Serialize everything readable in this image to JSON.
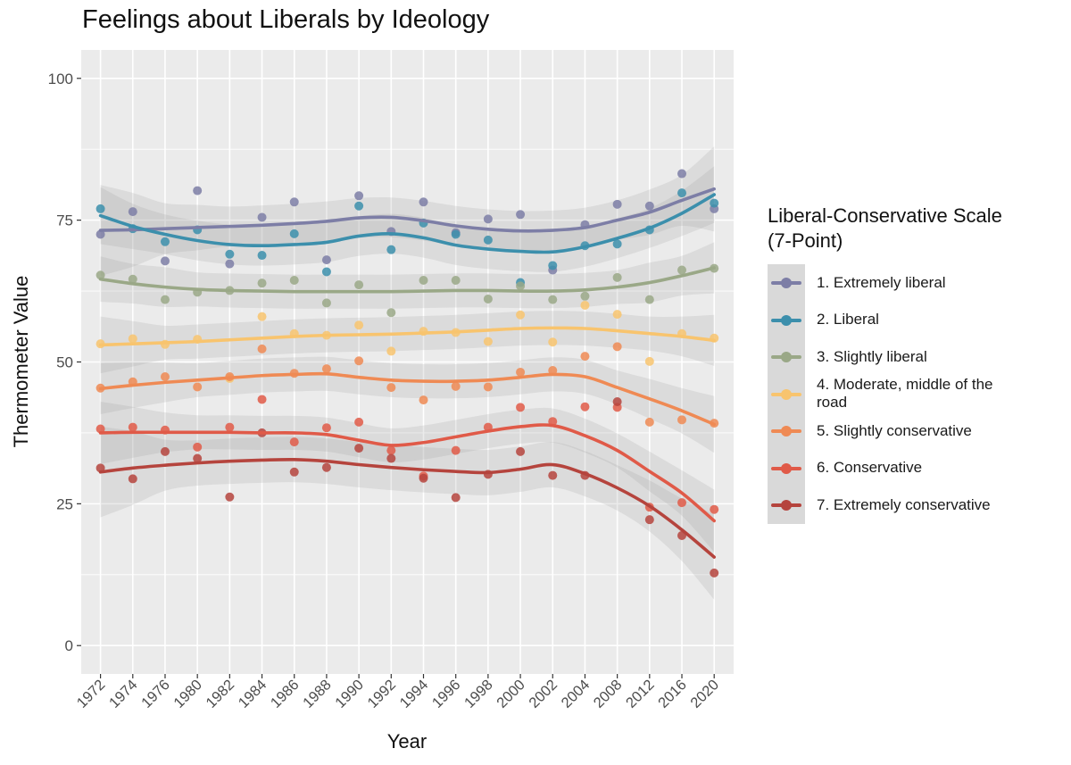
{
  "chart_data": {
    "type": "scatter",
    "title": "Feelings about Liberals by Ideology",
    "xlabel": "Year",
    "ylabel": "Thermometer Value",
    "legend_title": "Liberal-Conservative Scale (7-Point)",
    "legend_title_lines": [
      "Liberal-Conservative Scale",
      "(7-Point)"
    ],
    "legend_position": "right",
    "grid": true,
    "background": "#ebebeb",
    "ylim": [
      -5,
      105
    ],
    "yticks": [
      0,
      25,
      50,
      75,
      100
    ],
    "categories": [
      "1972",
      "1974",
      "1976",
      "1980",
      "1982",
      "1984",
      "1986",
      "1988",
      "1990",
      "1992",
      "1994",
      "1996",
      "1998",
      "2000",
      "2002",
      "2004",
      "2008",
      "2012",
      "2016",
      "2020"
    ],
    "smoothing": "loess with 95% confidence band",
    "series": [
      {
        "name": "1. Extremely liberal",
        "color": "#7d7ea6",
        "values": [
          72.5,
          76.5,
          67.8,
          80.2,
          67.3,
          75.5,
          78.2,
          68.0,
          79.3,
          73.0,
          78.2,
          72.8,
          75.2,
          76.0,
          66.2,
          74.2,
          77.8,
          77.5,
          83.2,
          77.0
        ],
        "fit": [
          73.2,
          73.3,
          73.5,
          73.7,
          73.9,
          74.1,
          74.4,
          74.8,
          75.4,
          75.5,
          74.9,
          74.0,
          73.4,
          73.1,
          73.2,
          73.7,
          75.0,
          76.4,
          78.5,
          80.5
        ],
        "band": [
          8.0,
          6.5,
          4.5,
          4.0,
          3.5,
          3.5,
          3.5,
          3.5,
          3.5,
          3.5,
          3.5,
          3.5,
          3.5,
          3.5,
          3.5,
          3.5,
          3.5,
          4.0,
          4.5,
          7.5
        ]
      },
      {
        "name": "2. Liberal",
        "color": "#3c8fac",
        "values": [
          77.0,
          73.5,
          71.2,
          73.3,
          69.0,
          68.8,
          72.6,
          65.9,
          77.5,
          69.8,
          74.5,
          72.5,
          71.5,
          64.0,
          67.0,
          70.5,
          70.8,
          73.3,
          79.8,
          78.0
        ],
        "fit": [
          75.8,
          73.9,
          72.5,
          71.4,
          70.7,
          70.5,
          70.7,
          71.1,
          72.2,
          72.6,
          71.9,
          70.6,
          69.9,
          69.5,
          69.4,
          70.3,
          71.8,
          73.6,
          76.2,
          79.5
        ],
        "band": [
          5.0,
          4.0,
          3.5,
          3.5,
          3.5,
          3.5,
          3.5,
          3.5,
          3.5,
          3.5,
          3.5,
          3.5,
          3.5,
          3.5,
          3.5,
          3.5,
          3.5,
          3.5,
          4.0,
          5.0
        ]
      },
      {
        "name": "3. Slightly liberal",
        "color": "#9aa887",
        "values": [
          65.3,
          64.6,
          61.0,
          62.3,
          62.6,
          63.9,
          64.4,
          60.4,
          63.6,
          58.7,
          64.4,
          64.4,
          61.1,
          63.4,
          61.0,
          61.6,
          64.9,
          61.0,
          66.2,
          66.5
        ],
        "fit": [
          64.6,
          63.8,
          63.2,
          62.8,
          62.6,
          62.5,
          62.4,
          62.4,
          62.4,
          62.4,
          62.5,
          62.6,
          62.6,
          62.5,
          62.5,
          62.7,
          63.2,
          64.0,
          65.2,
          66.6
        ],
        "band": [
          4.0,
          3.5,
          3.5,
          3.0,
          3.0,
          3.0,
          3.0,
          3.0,
          3.0,
          3.0,
          3.0,
          3.0,
          3.0,
          3.0,
          3.0,
          3.0,
          3.0,
          3.5,
          3.5,
          4.5
        ]
      },
      {
        "name": "4. Moderate, middle of the road",
        "color": "#f8c46e",
        "label_lines": [
          "4. Moderate, middle of the",
          "road"
        ],
        "values": [
          53.2,
          54.1,
          53.1,
          54.0,
          47.1,
          58.0,
          55.0,
          54.7,
          56.5,
          51.9,
          55.4,
          55.2,
          53.6,
          58.3,
          53.5,
          60.0,
          58.4,
          50.1,
          55.0,
          54.2
        ],
        "fit": [
          53.0,
          53.2,
          53.4,
          53.6,
          53.9,
          54.2,
          54.5,
          54.7,
          54.8,
          54.9,
          55.1,
          55.3,
          55.6,
          55.9,
          56.0,
          55.9,
          55.5,
          55.0,
          54.5,
          53.8
        ],
        "band": [
          5.0,
          4.0,
          3.0,
          3.0,
          3.0,
          3.0,
          3.0,
          3.0,
          3.0,
          3.0,
          3.0,
          3.0,
          3.0,
          3.0,
          3.0,
          3.0,
          3.0,
          3.0,
          3.5,
          4.5
        ]
      },
      {
        "name": "5. Slightly conservative",
        "color": "#ef8a54",
        "values": [
          45.4,
          46.5,
          47.4,
          45.6,
          47.4,
          52.3,
          48.0,
          48.8,
          50.2,
          45.5,
          43.3,
          45.7,
          45.6,
          48.2,
          48.5,
          51.0,
          52.7,
          39.4,
          39.8,
          39.2
        ],
        "fit": [
          45.3,
          45.9,
          46.4,
          46.8,
          47.2,
          47.6,
          47.8,
          47.9,
          47.3,
          46.8,
          46.6,
          46.6,
          46.8,
          47.3,
          47.8,
          47.4,
          45.5,
          43.5,
          41.4,
          39.0
        ],
        "band": [
          4.5,
          4.0,
          3.5,
          3.0,
          3.0,
          3.0,
          3.0,
          3.0,
          3.0,
          3.0,
          3.0,
          3.0,
          3.0,
          3.0,
          3.0,
          3.0,
          3.0,
          3.5,
          4.0,
          5.0
        ]
      },
      {
        "name": "6. Conservative",
        "color": "#e05a48",
        "values": [
          38.2,
          38.5,
          38.0,
          35.0,
          38.5,
          43.4,
          35.9,
          38.4,
          39.4,
          34.4,
          29.9,
          34.4,
          38.5,
          42.0,
          39.5,
          42.1,
          42.0,
          24.4,
          25.2,
          24.0
        ],
        "fit": [
          37.5,
          37.6,
          37.6,
          37.6,
          37.6,
          37.5,
          37.5,
          37.2,
          36.2,
          35.3,
          35.8,
          36.8,
          37.8,
          38.6,
          38.8,
          37.0,
          34.4,
          30.7,
          26.9,
          22.0
        ],
        "band": [
          5.5,
          4.5,
          3.5,
          3.0,
          3.0,
          3.0,
          3.0,
          3.0,
          3.0,
          3.0,
          3.0,
          3.0,
          3.0,
          3.0,
          3.0,
          3.0,
          3.0,
          3.5,
          4.0,
          5.5
        ]
      },
      {
        "name": "7. Extremely conservative",
        "color": "#b5443d",
        "values": [
          31.3,
          29.4,
          34.2,
          33.0,
          26.2,
          37.5,
          30.6,
          31.4,
          34.8,
          33.0,
          29.5,
          26.1,
          30.2,
          34.2,
          30.0,
          30.0,
          43.0,
          22.2,
          19.4,
          12.8
        ],
        "fit": [
          30.6,
          31.3,
          31.8,
          32.2,
          32.5,
          32.7,
          32.8,
          32.5,
          31.9,
          31.4,
          31.0,
          30.7,
          30.5,
          31.1,
          31.9,
          30.3,
          27.8,
          24.6,
          20.4,
          15.6
        ],
        "band": [
          8.0,
          6.5,
          4.5,
          4.0,
          4.0,
          4.0,
          4.0,
          4.0,
          4.0,
          4.0,
          4.0,
          4.0,
          4.0,
          4.0,
          4.0,
          4.0,
          4.0,
          4.5,
          5.5,
          7.5
        ]
      }
    ]
  }
}
